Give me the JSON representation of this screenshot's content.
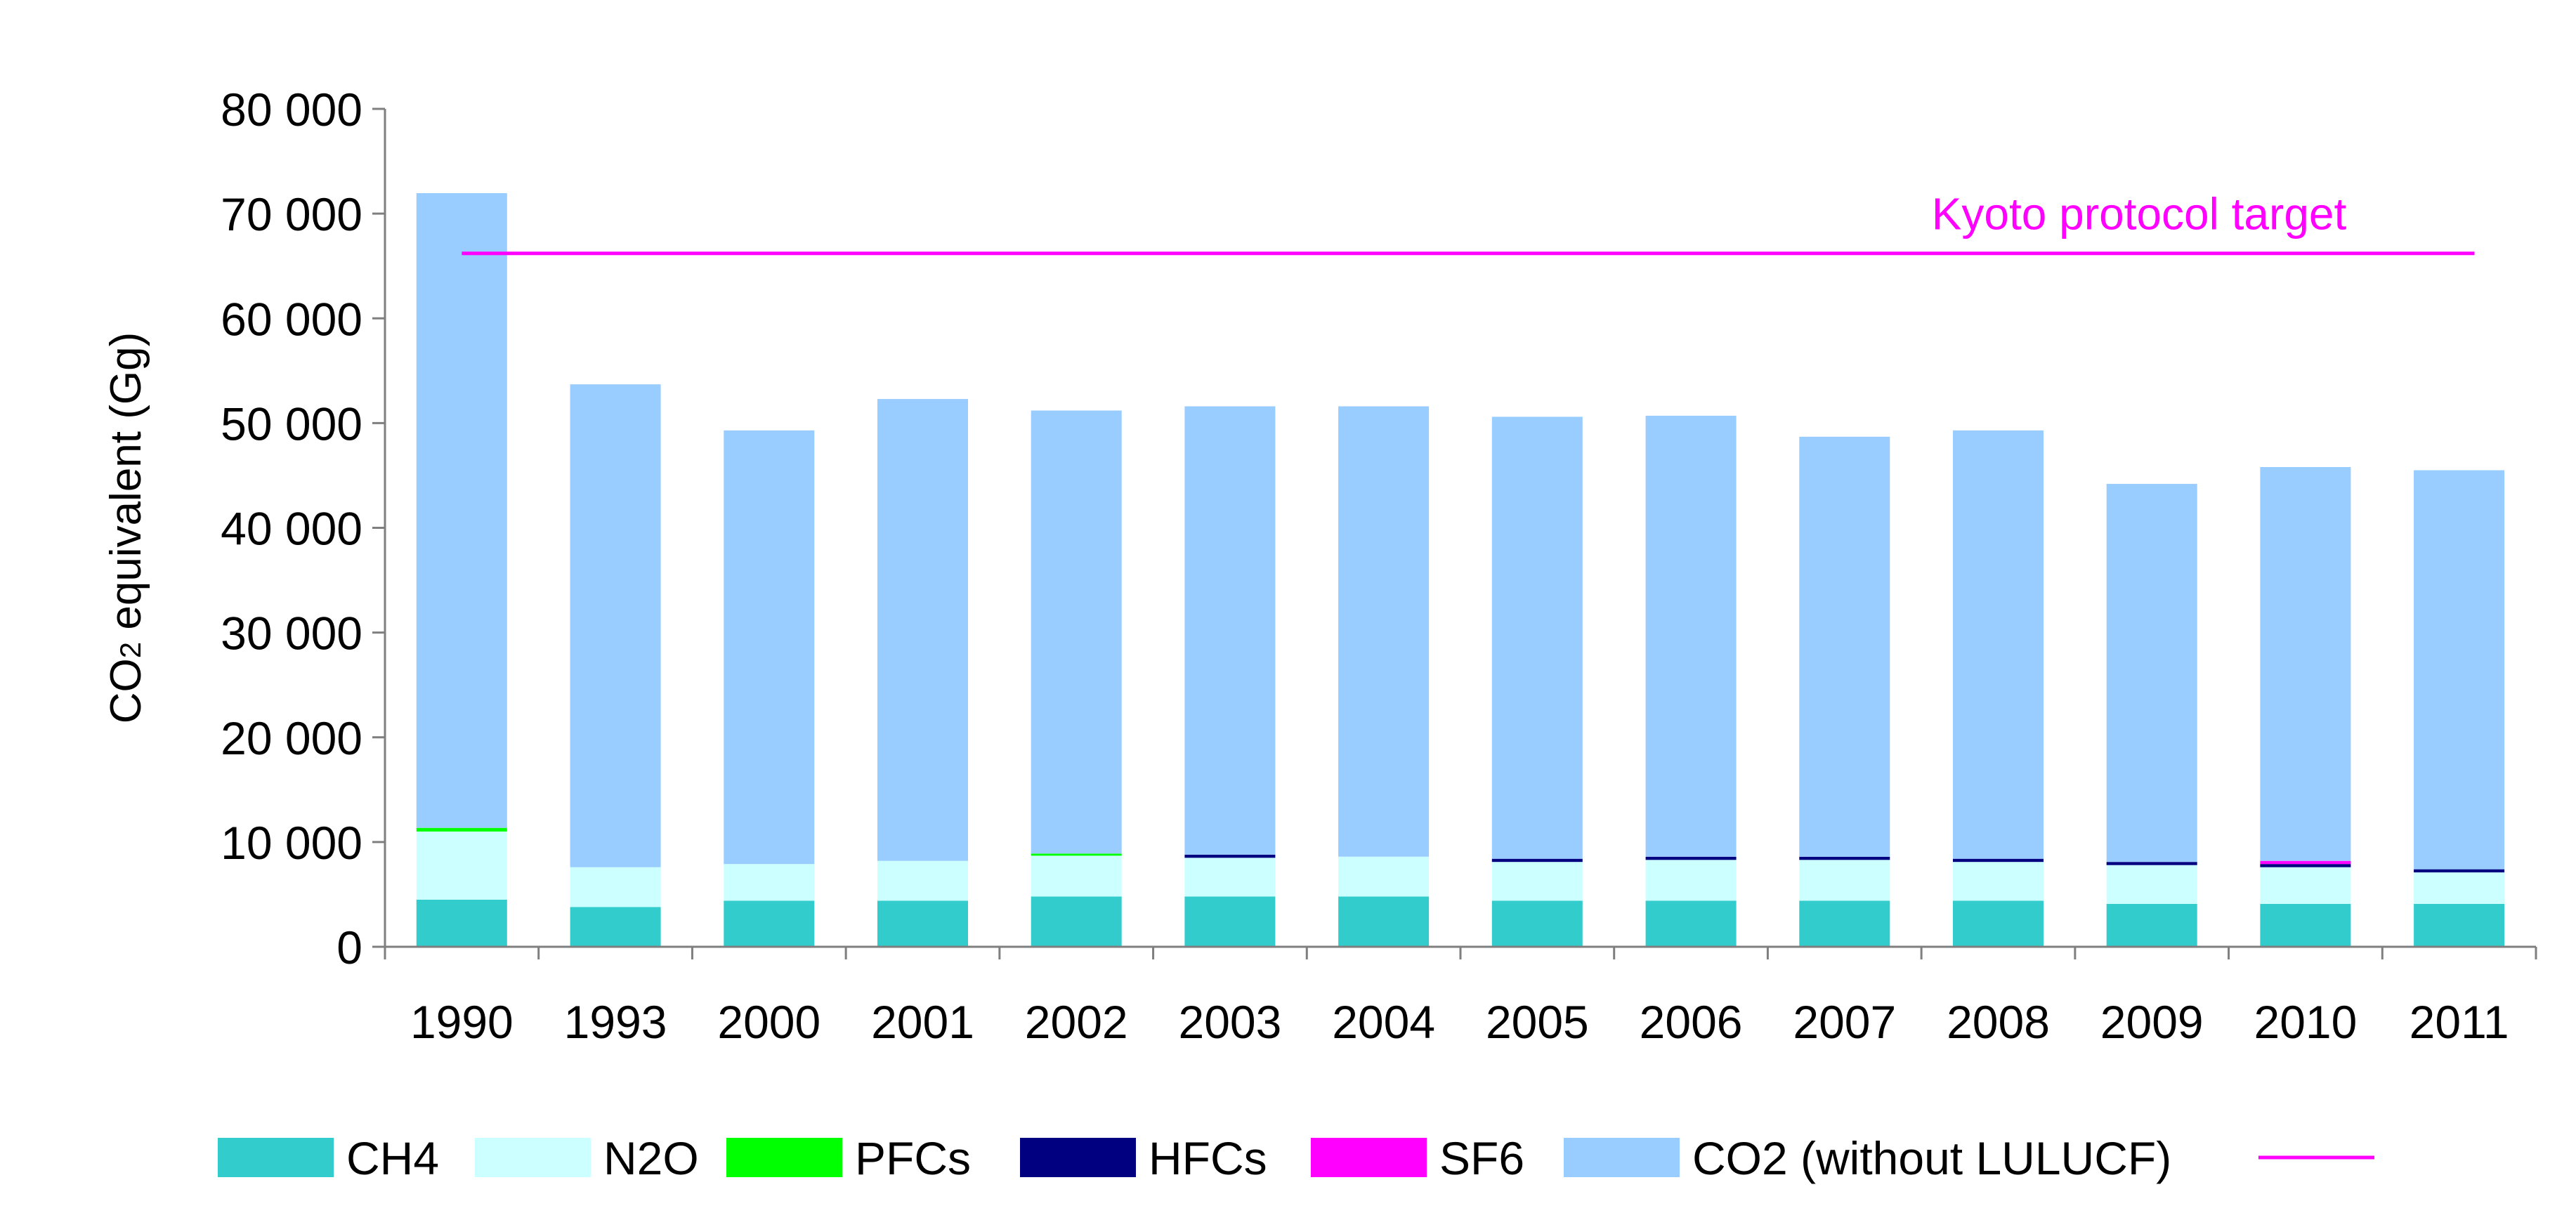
{
  "chart_data": {
    "type": "bar",
    "stacked": true,
    "ylabel_main": "CO",
    "ylabel_sub": "2",
    "ylabel_rest": " equivalent (Gg)",
    "ylim": [
      0,
      80000
    ],
    "yticks": [
      0,
      10000,
      20000,
      30000,
      40000,
      50000,
      60000,
      70000,
      80000
    ],
    "ytick_labels": [
      "0",
      "10 000",
      "20 000",
      "30 000",
      "40 000",
      "50 000",
      "60 000",
      "70 000",
      "80 000"
    ],
    "categories": [
      "1990",
      "1993",
      "2000",
      "2001",
      "2002",
      "2003",
      "2004",
      "2005",
      "2006",
      "2007",
      "2008",
      "2009",
      "2010",
      "2011"
    ],
    "series": [
      {
        "name": "CH4",
        "color": "#33CCCC",
        "values": [
          4500,
          3800,
          4400,
          4400,
          4800,
          4800,
          4800,
          4400,
          4400,
          4400,
          4400,
          4100,
          4100,
          4100
        ]
      },
      {
        "name": "N2O",
        "color": "#CCFFFF",
        "values": [
          6500,
          3800,
          3500,
          3800,
          3900,
          3700,
          3800,
          3700,
          3900,
          3900,
          3700,
          3700,
          3500,
          3000
        ]
      },
      {
        "name": "PFCs",
        "color": "#00FF00",
        "values": [
          350,
          0,
          0,
          0,
          200,
          0,
          0,
          0,
          0,
          0,
          0,
          0,
          0,
          0
        ]
      },
      {
        "name": "HFCs",
        "color": "#000080",
        "values": [
          0,
          0,
          0,
          0,
          0,
          300,
          0,
          300,
          300,
          300,
          300,
          300,
          300,
          300
        ]
      },
      {
        "name": "SF6",
        "color": "#FF00FF",
        "values": [
          0,
          0,
          0,
          0,
          0,
          0,
          0,
          0,
          0,
          0,
          0,
          0,
          300,
          0
        ]
      },
      {
        "name": "CO2 (without LULUCF)",
        "color": "#99CCFF",
        "values": [
          60600,
          46100,
          41400,
          44100,
          42300,
          42800,
          43000,
          42200,
          42100,
          40100,
          40900,
          36100,
          37600,
          38100
        ]
      }
    ],
    "target": {
      "name": "Kyoto protocol target",
      "value": 66200,
      "color": "#FF00FF"
    },
    "annotation": "Kyoto protocol target",
    "legend_position": "bottom",
    "grid": false
  }
}
